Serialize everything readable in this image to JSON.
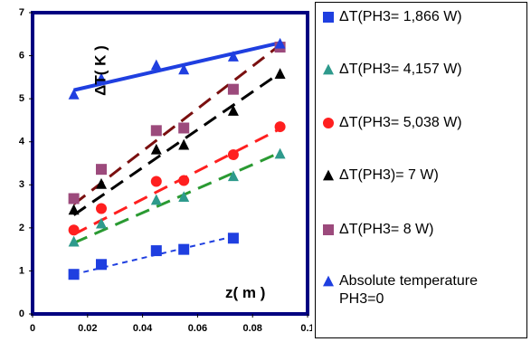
{
  "chart_data": {
    "type": "scatter",
    "title": "",
    "xlabel": "z( m )",
    "ylabel": "ΔT( K )",
    "xlim": [
      0,
      0.1
    ],
    "ylim": [
      0,
      7
    ],
    "x_ticks": [
      0,
      0.02,
      0.04,
      0.06,
      0.08,
      0.1
    ],
    "x_tick_labels": [
      "0",
      "0.02",
      "0.04",
      "0.06",
      "0.08",
      "0.1"
    ],
    "y_ticks": [
      0,
      1,
      2,
      3,
      4,
      5,
      6,
      7
    ],
    "y_tick_labels": [
      "0",
      "1",
      "2",
      "3",
      "4",
      "5",
      "6",
      "7"
    ],
    "grid": false,
    "legend_position": "right",
    "series": [
      {
        "name": "ΔT(PH3= 1,866 W)",
        "marker": "square",
        "color": "#1f3fe0",
        "x": [
          0.015,
          0.025,
          0.045,
          0.055,
          0.073
        ],
        "y": [
          0.92,
          1.15,
          1.47,
          1.5,
          1.76
        ],
        "trend": {
          "x": [
            0.015,
            0.073
          ],
          "y": [
            0.92,
            1.8
          ],
          "color": "#1f3fe0",
          "dash": "6,5",
          "width": 2
        }
      },
      {
        "name": "ΔT(PH3= 4,157 W)",
        "marker": "triangle",
        "color": "#2e9a8c",
        "x": [
          0.015,
          0.025,
          0.045,
          0.055,
          0.073,
          0.09
        ],
        "y": [
          1.68,
          2.1,
          2.65,
          2.72,
          3.2,
          3.72
        ],
        "trend": {
          "x": [
            0.015,
            0.09
          ],
          "y": [
            1.65,
            3.75
          ],
          "color": "#2a9a32",
          "dash": "16,9",
          "width": 3
        }
      },
      {
        "name": "ΔT(PH3= 5,038 W)",
        "marker": "circle",
        "color": "#ff1f1f",
        "x": [
          0.015,
          0.025,
          0.045,
          0.055,
          0.073,
          0.09
        ],
        "y": [
          1.95,
          2.45,
          3.08,
          3.1,
          3.7,
          4.35
        ],
        "trend": {
          "x": [
            0.015,
            0.09
          ],
          "y": [
            1.85,
            4.3
          ],
          "color": "#ff1f1f",
          "dash": "16,9",
          "width": 3
        }
      },
      {
        "name": "ΔT(PH3)= 7 W)",
        "marker": "triangle",
        "color": "#000000",
        "x": [
          0.015,
          0.025,
          0.045,
          0.055,
          0.073,
          0.09
        ],
        "y": [
          2.42,
          3.02,
          3.82,
          3.93,
          4.72,
          5.58
        ],
        "trend": {
          "x": [
            0.015,
            0.09
          ],
          "y": [
            2.3,
            5.6
          ],
          "color": "#000000",
          "dash": "16,9",
          "width": 3
        }
      },
      {
        "name": "ΔT(PH3= 8 W)",
        "marker": "square",
        "color": "#9c4a7c",
        "x": [
          0.015,
          0.025,
          0.045,
          0.055,
          0.073,
          0.09
        ],
        "y": [
          2.68,
          3.36,
          4.26,
          4.32,
          5.22,
          6.2
        ],
        "trend": {
          "x": [
            0.015,
            0.09
          ],
          "y": [
            2.55,
            6.25
          ],
          "color": "#7a0f0f",
          "dash": "16,9",
          "width": 3
        }
      },
      {
        "name": "Absolute temperature PH3=0",
        "marker": "triangle",
        "color": "#1f3fe0",
        "x": [
          0.015,
          0.025,
          0.045,
          0.055,
          0.073,
          0.09
        ],
        "y": [
          5.1,
          5.47,
          5.78,
          5.68,
          5.98,
          6.28
        ],
        "trend": {
          "x": [
            0.015,
            0.09
          ],
          "y": [
            5.2,
            6.3
          ],
          "color": "#1f3fe0",
          "dash": "",
          "width": 4
        }
      }
    ]
  }
}
